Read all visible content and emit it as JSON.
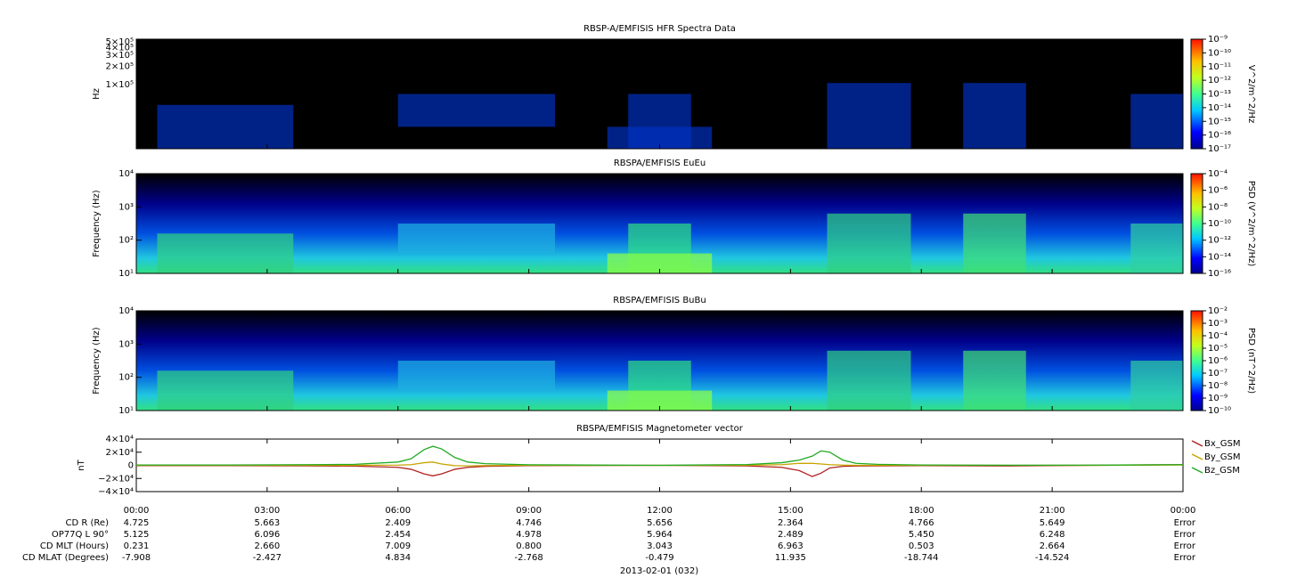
{
  "chart_data": [
    {
      "type": "spectrogram",
      "title": "RBSP-A/EMFISIS  HFR Spectra Data",
      "ylabel": "Hz",
      "log_y": true,
      "ylim": [
        9000,
        550000
      ],
      "yticks": [
        {
          "value": 500000,
          "label": "5×10⁵"
        },
        {
          "value": 400000,
          "label": "4×10⁵"
        },
        {
          "value": 300000,
          "label": "3×10⁵"
        },
        {
          "value": 200000,
          "label": "2×10⁵"
        },
        {
          "value": 100000,
          "label": "1×10⁵"
        }
      ],
      "colorbar": {
        "label": "V^2/m^2/Hz",
        "zlim": [
          1e-17,
          1e-09
        ],
        "ticks": [
          {
            "value": 1e-09,
            "label": "10⁻⁹"
          },
          {
            "value": 1e-10,
            "label": "10⁻¹⁰"
          },
          {
            "value": 1e-11,
            "label": "10⁻¹¹"
          },
          {
            "value": 1e-12,
            "label": "10⁻¹²"
          },
          {
            "value": 1e-13,
            "label": "10⁻¹³"
          },
          {
            "value": 1e-14,
            "label": "10⁻¹⁴"
          },
          {
            "value": 1e-15,
            "label": "10⁻¹⁵"
          },
          {
            "value": 1e-16,
            "label": "10⁻¹⁶"
          },
          {
            "value": 1e-17,
            "label": "10⁻¹⁷"
          }
        ]
      }
    },
    {
      "type": "spectrogram",
      "title": "RBSPA/EMFISIS  EuEu",
      "ylabel": "Frequency (Hz)",
      "log_y": true,
      "ylim": [
        10,
        10000
      ],
      "yticks": [
        {
          "value": 10000,
          "label": "10⁴"
        },
        {
          "value": 1000,
          "label": "10³"
        },
        {
          "value": 100,
          "label": "10²"
        },
        {
          "value": 10,
          "label": "10¹"
        }
      ],
      "colorbar": {
        "label": "PSD (V^2/m^2/Hz)",
        "zlim": [
          1e-16,
          0.0001
        ],
        "ticks": [
          {
            "value": 0.0001,
            "label": "10⁻⁴"
          },
          {
            "value": 1e-06,
            "label": "10⁻⁶"
          },
          {
            "value": 1e-08,
            "label": "10⁻⁸"
          },
          {
            "value": 1e-10,
            "label": "10⁻¹⁰"
          },
          {
            "value": 1e-12,
            "label": "10⁻¹²"
          },
          {
            "value": 1e-14,
            "label": "10⁻¹⁴"
          },
          {
            "value": 1e-16,
            "label": "10⁻¹⁶"
          }
        ]
      }
    },
    {
      "type": "spectrogram",
      "title": "RBSPA/EMFISIS  BuBu",
      "ylabel": "Frequency (Hz)",
      "log_y": true,
      "ylim": [
        10,
        10000
      ],
      "yticks": [
        {
          "value": 10000,
          "label": "10⁴"
        },
        {
          "value": 1000,
          "label": "10³"
        },
        {
          "value": 100,
          "label": "10²"
        },
        {
          "value": 10,
          "label": "10¹"
        }
      ],
      "colorbar": {
        "label": "PSD (nT^2/Hz)",
        "zlim": [
          1e-10,
          0.01
        ],
        "ticks": [
          {
            "value": 0.01,
            "label": "10⁻²"
          },
          {
            "value": 0.001,
            "label": "10⁻³"
          },
          {
            "value": 0.0001,
            "label": "10⁻⁴"
          },
          {
            "value": 1e-05,
            "label": "10⁻⁵"
          },
          {
            "value": 1e-06,
            "label": "10⁻⁶"
          },
          {
            "value": 1e-07,
            "label": "10⁻⁷"
          },
          {
            "value": 1e-08,
            "label": "10⁻⁸"
          },
          {
            "value": 1e-09,
            "label": "10⁻⁹"
          },
          {
            "value": 1e-10,
            "label": "10⁻¹⁰"
          }
        ]
      }
    },
    {
      "type": "line",
      "title": "RBSPA/EMFISIS  Magnetometer vector",
      "ylabel": "nT",
      "xlim": [
        0,
        24
      ],
      "xticks": [
        {
          "value": 0,
          "label": "00:00"
        },
        {
          "value": 3,
          "label": "03:00"
        },
        {
          "value": 6,
          "label": "06:00"
        },
        {
          "value": 9,
          "label": "09:00"
        },
        {
          "value": 12,
          "label": "12:00"
        },
        {
          "value": 15,
          "label": "15:00"
        },
        {
          "value": 18,
          "label": "18:00"
        },
        {
          "value": 21,
          "label": "21:00"
        },
        {
          "value": 24,
          "label": "00:00"
        }
      ],
      "ylim": [
        -40000,
        40000
      ],
      "yticks": [
        {
          "value": 40000,
          "label": "4×10⁴"
        },
        {
          "value": 20000,
          "label": "2×10⁴"
        },
        0,
        {
          "value": -20000,
          "label": "−2×10⁴"
        },
        {
          "value": -40000,
          "label": "−4×10⁴"
        }
      ],
      "x": [
        0,
        2,
        4,
        5,
        6,
        6.3,
        6.6,
        6.8,
        7,
        7.3,
        7.6,
        8,
        9,
        12,
        14,
        14.8,
        15.2,
        15.5,
        15.7,
        15.9,
        16.2,
        16.5,
        17,
        18,
        20,
        22,
        24
      ],
      "series": [
        {
          "name": "Bx_GSM",
          "color": "#b22222",
          "values": [
            -500,
            -500,
            -800,
            -1200,
            -3000,
            -6000,
            -13000,
            -16000,
            -13000,
            -6000,
            -3000,
            -1500,
            -500,
            0,
            -800,
            -3000,
            -8000,
            -17000,
            -12000,
            -4000,
            -1500,
            -1000,
            -800,
            -500,
            -1000,
            0,
            1000
          ]
        },
        {
          "name": "By_GSM",
          "color": "#c8a400",
          "values": [
            0,
            0,
            0,
            100,
            300,
            1000,
            4000,
            5000,
            2000,
            -500,
            -800,
            -300,
            0,
            0,
            200,
            1000,
            3000,
            3000,
            2000,
            1000,
            300,
            0,
            0,
            0,
            0,
            0,
            500
          ]
        },
        {
          "name": "Bz_GSM",
          "color": "#22aa22",
          "values": [
            500,
            500,
            1000,
            1500,
            5000,
            10000,
            24000,
            29000,
            25000,
            12000,
            5000,
            2500,
            800,
            0,
            1200,
            4000,
            8000,
            14000,
            22000,
            20000,
            8000,
            3000,
            1500,
            500,
            200,
            300,
            1000
          ]
        }
      ]
    }
  ],
  "ephemeris": {
    "rows": [
      {
        "label": "CD R (Re)",
        "values": [
          "4.725",
          "5.663",
          "2.409",
          "4.746",
          "5.656",
          "2.364",
          "4.766",
          "5.649",
          "Error"
        ]
      },
      {
        "label": "OP77Q L 90°",
        "values": [
          "5.125",
          "6.096",
          "2.454",
          "4.978",
          "5.964",
          "2.489",
          "5.450",
          "6.248",
          "Error"
        ]
      },
      {
        "label": "CD MLT (Hours)",
        "values": [
          "0.231",
          "2.660",
          "7.009",
          "0.800",
          "3.043",
          "6.963",
          "0.503",
          "2.664",
          "Error"
        ]
      },
      {
        "label": "CD MLAT (Degrees)",
        "values": [
          "-7.908",
          "-2.427",
          "4.834",
          "-2.768",
          "-0.479",
          "11.935",
          "-18.744",
          "-14.524",
          "Error"
        ]
      }
    ]
  },
  "date": "2013-02-01 (032)"
}
